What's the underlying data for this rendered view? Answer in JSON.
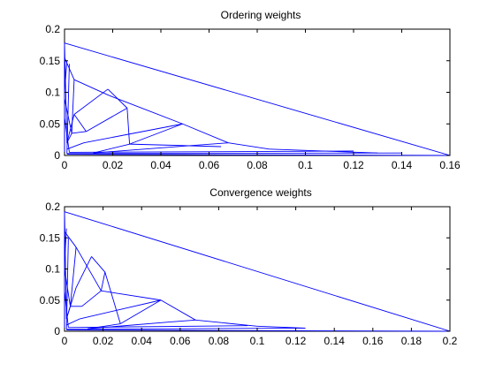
{
  "chart_data": [
    {
      "type": "line",
      "title": "Ordering weights",
      "xlabel": "",
      "ylabel": "",
      "xlim": [
        0,
        0.16
      ],
      "ylim": [
        0,
        0.2
      ],
      "x_ticks": [
        0,
        0.02,
        0.04,
        0.06,
        0.08,
        0.1,
        0.12,
        0.14,
        0.16
      ],
      "x_tick_labels": [
        "0",
        "0.02",
        "0.04",
        "0.06",
        "0.08",
        "0.1",
        "0.12",
        "0.14",
        "0.16"
      ],
      "y_ticks": [
        0,
        0.05,
        0.1,
        0.15,
        0.2
      ],
      "y_tick_labels": [
        "0",
        "0.05",
        "0.1",
        "0.15",
        "0.2"
      ],
      "color": "#0000ff",
      "grid": false,
      "legend": "none",
      "segments": [
        [
          [
            0,
            0.178
          ],
          [
            0.16,
            0
          ]
        ],
        [
          [
            0,
            0.178
          ],
          [
            0.001,
            0.02
          ]
        ],
        [
          [
            0,
            0.155
          ],
          [
            0.004,
            0.12
          ]
        ],
        [
          [
            0.004,
            0.12
          ],
          [
            0.0185,
            0.095
          ]
        ],
        [
          [
            0.0185,
            0.095
          ],
          [
            0.049,
            0.05
          ]
        ],
        [
          [
            0.004,
            0.12
          ],
          [
            0.003,
            0.035
          ]
        ],
        [
          [
            0.018,
            0.105
          ],
          [
            0.004,
            0.065
          ]
        ],
        [
          [
            0.018,
            0.105
          ],
          [
            0.026,
            0.075
          ]
        ],
        [
          [
            0.026,
            0.075
          ],
          [
            0.027,
            0.018
          ]
        ],
        [
          [
            0.026,
            0.075
          ],
          [
            0.009,
            0.038
          ]
        ],
        [
          [
            0.009,
            0.038
          ],
          [
            0.003,
            0.035
          ]
        ],
        [
          [
            0.004,
            0.065
          ],
          [
            0.001,
            0.02
          ]
        ],
        [
          [
            0.004,
            0.065
          ],
          [
            0.009,
            0.038
          ]
        ],
        [
          [
            0.027,
            0.018
          ],
          [
            0.049,
            0.05
          ]
        ],
        [
          [
            0.049,
            0.05
          ],
          [
            0.068,
            0.02
          ]
        ],
        [
          [
            0.049,
            0.05
          ],
          [
            0.008,
            0.02
          ]
        ],
        [
          [
            0.027,
            0.018
          ],
          [
            0.012,
            0.004
          ]
        ],
        [
          [
            0.068,
            0.02
          ],
          [
            0.05,
            0.015
          ]
        ],
        [
          [
            0.068,
            0.02
          ],
          [
            0.085,
            0.01
          ]
        ],
        [
          [
            0.027,
            0.018
          ],
          [
            0.065,
            0.014
          ]
        ],
        [
          [
            0.012,
            0.004
          ],
          [
            0.05,
            0.015
          ]
        ],
        [
          [
            0.001,
            0.003
          ],
          [
            0.14,
            0.004
          ]
        ],
        [
          [
            0.001,
            0.002
          ],
          [
            0.16,
            0
          ]
        ],
        [
          [
            0.002,
            0.005
          ],
          [
            0.12,
            0.007
          ]
        ],
        [
          [
            0.085,
            0.01
          ],
          [
            0.13,
            0.004
          ]
        ],
        [
          [
            0.003,
            0.035
          ],
          [
            0.001,
            0.02
          ]
        ],
        [
          [
            0.008,
            0.02
          ],
          [
            0.001,
            0.01
          ]
        ],
        [
          [
            0.0,
            0.09
          ],
          [
            0.003,
            0.035
          ]
        ],
        [
          [
            0.0,
            0.06
          ],
          [
            0.002,
            0.005
          ]
        ],
        [
          [
            0.001,
            0.15
          ],
          [
            0.0,
            0.1
          ]
        ],
        [
          [
            0.0,
            0.178
          ],
          [
            0.0,
            0.0
          ]
        ],
        [
          [
            0.002,
            0.145
          ],
          [
            0.001,
            0.003
          ]
        ]
      ]
    },
    {
      "type": "line",
      "title": "Convergence weights",
      "xlabel": "",
      "ylabel": "",
      "xlim": [
        0,
        0.2
      ],
      "ylim": [
        0,
        0.2
      ],
      "x_ticks": [
        0,
        0.02,
        0.04,
        0.06,
        0.08,
        0.1,
        0.12,
        0.14,
        0.16,
        0.18,
        0.2
      ],
      "x_tick_labels": [
        "0",
        "0.02",
        "0.04",
        "0.06",
        "0.08",
        "0.1",
        "0.12",
        "0.14",
        "0.16",
        "0.18",
        "0.2"
      ],
      "y_ticks": [
        0,
        0.05,
        0.1,
        0.15,
        0.2
      ],
      "y_tick_labels": [
        "0",
        "0.05",
        "0.1",
        "0.15",
        "0.2"
      ],
      "color": "#0000ff",
      "grid": false,
      "legend": "none",
      "segments": [
        [
          [
            0,
            0.192
          ],
          [
            0.2,
            0
          ]
        ],
        [
          [
            0,
            0.192
          ],
          [
            0.001,
            0.02
          ]
        ],
        [
          [
            0,
            0.16
          ],
          [
            0.006,
            0.135
          ]
        ],
        [
          [
            0.006,
            0.135
          ],
          [
            0.019,
            0.065
          ]
        ],
        [
          [
            0.006,
            0.135
          ],
          [
            0.003,
            0.04
          ]
        ],
        [
          [
            0.014,
            0.12
          ],
          [
            0.006,
            0.07
          ]
        ],
        [
          [
            0.014,
            0.12
          ],
          [
            0.021,
            0.095
          ]
        ],
        [
          [
            0.021,
            0.095
          ],
          [
            0.019,
            0.065
          ]
        ],
        [
          [
            0.019,
            0.065
          ],
          [
            0.05,
            0.05
          ]
        ],
        [
          [
            0.019,
            0.065
          ],
          [
            0.009,
            0.04
          ]
        ],
        [
          [
            0.021,
            0.095
          ],
          [
            0.029,
            0.012
          ]
        ],
        [
          [
            0.006,
            0.07
          ],
          [
            0.001,
            0.02
          ]
        ],
        [
          [
            0.009,
            0.04
          ],
          [
            0.003,
            0.04
          ]
        ],
        [
          [
            0.05,
            0.05
          ],
          [
            0.068,
            0.018
          ]
        ],
        [
          [
            0.05,
            0.05
          ],
          [
            0.008,
            0.02
          ]
        ],
        [
          [
            0.029,
            0.012
          ],
          [
            0.05,
            0.05
          ]
        ],
        [
          [
            0.029,
            0.012
          ],
          [
            0.012,
            0.004
          ]
        ],
        [
          [
            0.068,
            0.018
          ],
          [
            0.055,
            0.015
          ]
        ],
        [
          [
            0.068,
            0.018
          ],
          [
            0.1,
            0.008
          ]
        ],
        [
          [
            0.012,
            0.004
          ],
          [
            0.055,
            0.015
          ]
        ],
        [
          [
            0.001,
            0.003
          ],
          [
            0.125,
            0.005
          ]
        ],
        [
          [
            0.001,
            0.002
          ],
          [
            0.2,
            0
          ]
        ],
        [
          [
            0.002,
            0.006
          ],
          [
            0.095,
            0.009
          ]
        ],
        [
          [
            0.1,
            0.008
          ],
          [
            0.125,
            0.005
          ]
        ],
        [
          [
            0.003,
            0.04
          ],
          [
            0.001,
            0.02
          ]
        ],
        [
          [
            0.008,
            0.02
          ],
          [
            0.001,
            0.01
          ]
        ],
        [
          [
            0.0,
            0.1
          ],
          [
            0.003,
            0.04
          ]
        ],
        [
          [
            0.0,
            0.065
          ],
          [
            0.002,
            0.006
          ]
        ],
        [
          [
            0.001,
            0.165
          ],
          [
            0.0,
            0.11
          ]
        ],
        [
          [
            0.0,
            0.192
          ],
          [
            0.0,
            0.0
          ]
        ],
        [
          [
            0.002,
            0.15
          ],
          [
            0.001,
            0.003
          ]
        ]
      ]
    }
  ]
}
